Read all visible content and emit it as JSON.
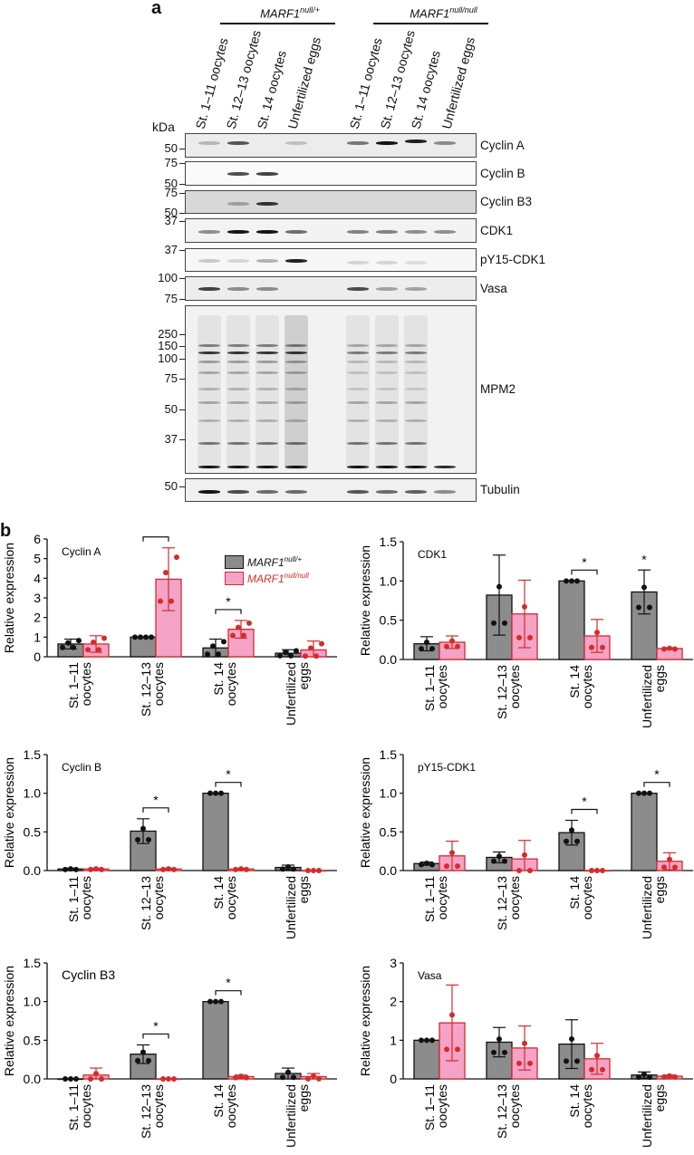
{
  "panel_a": {
    "letter": "a",
    "genotypes": [
      {
        "name": "MARF1",
        "sup": "null/+"
      },
      {
        "name": "MARF1",
        "sup": "null/null"
      }
    ],
    "lanes": [
      "St. 1–11 oocytes",
      "St. 12–13 oocytes",
      "St. 14 oocytes",
      "Unfertilized eggs",
      "St. 1–11 oocytes",
      "St. 12–13 oocytes",
      "St. 14 oocytes",
      "Unfertilized eggs"
    ],
    "kda_header": "kDa",
    "blots": [
      {
        "name": "Cyclin A",
        "markers": [
          "50"
        ]
      },
      {
        "name": "Cyclin B",
        "markers": [
          "75",
          "50"
        ]
      },
      {
        "name": "Cyclin B3",
        "markers": [
          "75",
          "50"
        ]
      },
      {
        "name": "CDK1",
        "markers": [
          "37"
        ]
      },
      {
        "name": "pY15-CDK1",
        "markers": [
          "37"
        ]
      },
      {
        "name": "Vasa",
        "markers": [
          "100",
          "75"
        ]
      },
      {
        "name": "MPM2",
        "markers": [
          "250",
          "150",
          "100",
          "75",
          "50",
          "37"
        ]
      },
      {
        "name": "Tubulin",
        "markers": [
          "50"
        ]
      }
    ]
  },
  "panel_b": {
    "letter": "b",
    "legend": [
      {
        "label": "MARF1",
        "sup": "null/+",
        "color": "#8c8c8c"
      },
      {
        "label": "MARF1",
        "sup": "null/null",
        "color": "#f4a3c6"
      }
    ],
    "ylabel": "Relative expression"
  },
  "chart_data": [
    {
      "type": "bar",
      "title": "Cyclin A",
      "ylabel": "Relative expression",
      "ylim": [
        0,
        6
      ],
      "yticks": [
        "0",
        "1",
        "2",
        "3",
        "4",
        "5",
        "6"
      ],
      "categories": [
        "St. 1–11 oocytes",
        "St. 12–13 oocytes",
        "St. 14 oocytes",
        "Unfertilized eggs"
      ],
      "series": [
        {
          "name": "MARF1 null/+",
          "values": [
            0.65,
            1.0,
            0.45,
            0.18
          ],
          "err": [
            0.25,
            0,
            0.45,
            0.18
          ]
        },
        {
          "name": "MARF1 null/null",
          "values": [
            0.65,
            3.95,
            1.4,
            0.35
          ],
          "err": [
            0.42,
            1.6,
            0.45,
            0.45
          ]
        }
      ],
      "significance": [
        "St. 12–13 oocytes",
        "St. 14 oocytes"
      ]
    },
    {
      "type": "bar",
      "title": "CDK1",
      "ylabel": "Relative expression",
      "ylim": [
        0,
        1.5
      ],
      "yticks": [
        "0.0",
        "0.5",
        "1.0",
        "1.5"
      ],
      "categories": [
        "St. 1–11 oocytes",
        "St. 12–13 oocytes",
        "St. 14 oocytes",
        "Unfertilized eggs"
      ],
      "series": [
        {
          "name": "MARF1 null/+",
          "values": [
            0.2,
            0.82,
            1.0,
            0.86
          ],
          "err": [
            0.09,
            0.51,
            0,
            0.28
          ]
        },
        {
          "name": "MARF1 null/null",
          "values": [
            0.22,
            0.58,
            0.3,
            0.14
          ],
          "err": [
            0.08,
            0.43,
            0.21,
            0.01
          ]
        }
      ],
      "significance": [
        "St. 14 oocytes",
        "Unfertilized eggs"
      ]
    },
    {
      "type": "bar",
      "title": "Cyclin B",
      "ylabel": "Relative expression",
      "ylim": [
        0,
        1.5
      ],
      "yticks": [
        "0.0",
        "0.5",
        "1.0",
        "1.5"
      ],
      "categories": [
        "St. 1–11 oocytes",
        "St. 12–13 oocytes",
        "St. 14 oocytes",
        "Unfertilized eggs"
      ],
      "series": [
        {
          "name": "MARF1 null/+",
          "values": [
            0.02,
            0.51,
            1.0,
            0.04
          ],
          "err": [
            0.01,
            0.16,
            0,
            0.03
          ]
        },
        {
          "name": "MARF1 null/null",
          "values": [
            0.02,
            0.02,
            0.02,
            0.0
          ],
          "err": [
            0.01,
            0.01,
            0.01,
            0
          ]
        }
      ],
      "significance": [
        "St. 12–13 oocytes",
        "St. 14 oocytes"
      ]
    },
    {
      "type": "bar",
      "title": "pY15-CDK1",
      "ylabel": "Relative expression",
      "ylim": [
        0,
        1.5
      ],
      "yticks": [
        "0.0",
        "0.5",
        "1.0",
        "1.5"
      ],
      "categories": [
        "St. 1–11 oocytes",
        "St. 12–13 oocytes",
        "St. 14 oocytes",
        "Unfertilized eggs"
      ],
      "series": [
        {
          "name": "MARF1 null/+",
          "values": [
            0.09,
            0.17,
            0.49,
            1.0
          ],
          "err": [
            0.02,
            0.07,
            0.16,
            0
          ]
        },
        {
          "name": "MARF1 null/null",
          "values": [
            0.19,
            0.15,
            0.0,
            0.12
          ],
          "err": [
            0.19,
            0.24,
            0,
            0.11
          ]
        }
      ],
      "significance": [
        "St. 14 oocytes",
        "Unfertilized eggs"
      ]
    },
    {
      "type": "bar",
      "title": "Cyclin B3",
      "ylabel": "Relative expression",
      "ylim": [
        0,
        1.5
      ],
      "yticks": [
        "0.0",
        "0.5",
        "1.0",
        "1.5"
      ],
      "categories": [
        "St. 1–11 oocytes",
        "St. 12–13 oocytes",
        "St. 14 oocytes",
        "Unfertilized eggs"
      ],
      "series": [
        {
          "name": "MARF1 null/+",
          "values": [
            0.0,
            0.32,
            1.0,
            0.07
          ],
          "err": [
            0,
            0.12,
            0,
            0.07
          ]
        },
        {
          "name": "MARF1 null/null",
          "values": [
            0.05,
            0.0,
            0.03,
            0.03
          ],
          "err": [
            0.09,
            0,
            0.02,
            0.04
          ]
        }
      ],
      "significance": [
        "St. 12–13 oocytes",
        "St. 14 oocytes"
      ]
    },
    {
      "type": "bar",
      "title": "Vasa",
      "ylabel": "Relative expression",
      "ylim": [
        0,
        3
      ],
      "yticks": [
        "0",
        "1",
        "2",
        "3"
      ],
      "categories": [
        "St. 1–11 oocytes",
        "St. 12–13 oocytes",
        "St. 14 oocytes",
        "Unfertilized eggs"
      ],
      "series": [
        {
          "name": "MARF1 null/+",
          "values": [
            1.0,
            0.95,
            0.9,
            0.1
          ],
          "err": [
            0,
            0.38,
            0.63,
            0.08
          ]
        },
        {
          "name": "MARF1 null/null",
          "values": [
            1.45,
            0.8,
            0.52,
            0.07
          ],
          "err": [
            0.98,
            0.57,
            0.4,
            0.03
          ]
        }
      ],
      "significance": []
    }
  ]
}
